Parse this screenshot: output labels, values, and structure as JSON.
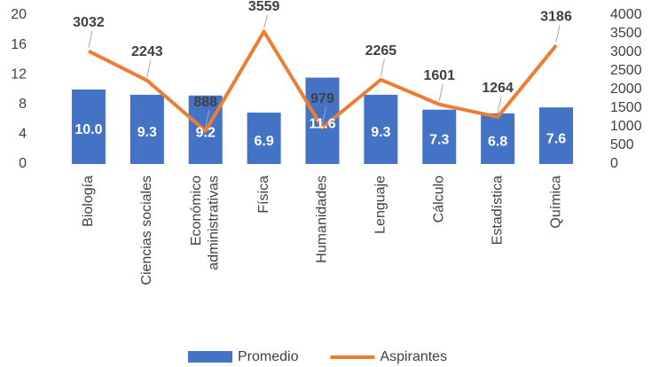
{
  "chart_data": {
    "type": "bar_line",
    "categories": [
      "Biología",
      "Ciencias sociales",
      "Económico administrativas",
      "Física",
      "Humanidades",
      "Lenguaje",
      "Cálculo",
      "Estadística",
      "Química"
    ],
    "series": [
      {
        "name": "Promedio",
        "type": "bar",
        "color": "#4472c4",
        "axis": "y",
        "values": [
          10.0,
          9.3,
          9.2,
          6.9,
          11.6,
          9.3,
          7.3,
          6.8,
          7.6
        ],
        "value_labels": [
          "10.0",
          "9.3",
          "9.2",
          "6.9",
          "11.6",
          "9.3",
          "7.3",
          "6.8",
          "7.6"
        ]
      },
      {
        "name": "Aspirantes",
        "type": "line",
        "color": "#ed7d31",
        "axis": "y2",
        "values": [
          3032,
          2243,
          888,
          3559,
          979,
          2265,
          1601,
          1264,
          3186
        ]
      }
    ],
    "ylim": [
      0,
      20
    ],
    "yticks": [
      0,
      4,
      8,
      12,
      16,
      20
    ],
    "y2lim": [
      0,
      4000
    ],
    "y2ticks": [
      0,
      500,
      1000,
      1500,
      2000,
      2500,
      3000,
      3500,
      4000
    ],
    "legend": "bottom"
  }
}
